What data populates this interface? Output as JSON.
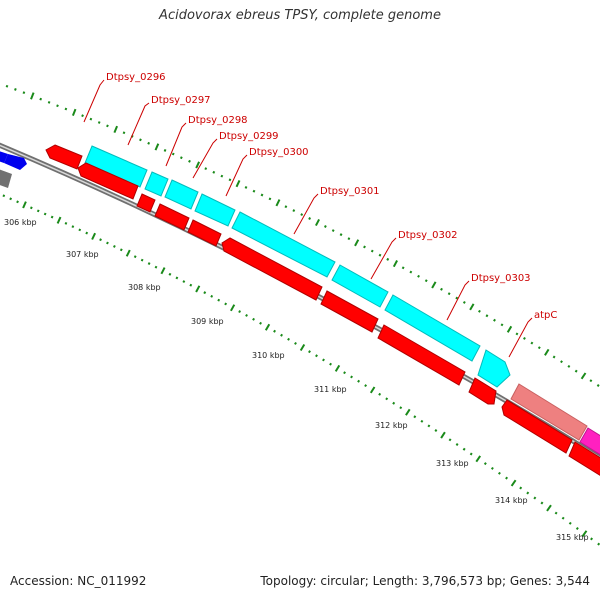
{
  "title": "Acidovorax ebreus TPSY, complete genome",
  "accession_label": "Accession: NC_011992",
  "summary_label": "Topology: circular; Length: 3,796,573 bp; Genes: 3,544",
  "genes": [
    {
      "name": "Dtpsy_0296"
    },
    {
      "name": "Dtpsy_0297"
    },
    {
      "name": "Dtpsy_0298"
    },
    {
      "name": "Dtpsy_0299"
    },
    {
      "name": "Dtpsy_0300"
    },
    {
      "name": "Dtpsy_0301"
    },
    {
      "name": "Dtpsy_0302"
    },
    {
      "name": "Dtpsy_0303"
    },
    {
      "name": "atpC"
    }
  ],
  "kbp_labels": [
    "306 kbp",
    "307 kbp",
    "308 kbp",
    "309 kbp",
    "310 kbp",
    "311 kbp",
    "312 kbp",
    "313 kbp",
    "314 kbp",
    "315 kbp"
  ],
  "colors": {
    "forward_cds": "#00ffff",
    "reverse_cds": "#ff0000",
    "atpC_forward": "#ee8080",
    "magenta_cds": "#ff20c0",
    "blue_cds": "#0000ee",
    "backbone": "#888888",
    "ticks": "#1a8a1a",
    "label_text": "#cc0000"
  }
}
